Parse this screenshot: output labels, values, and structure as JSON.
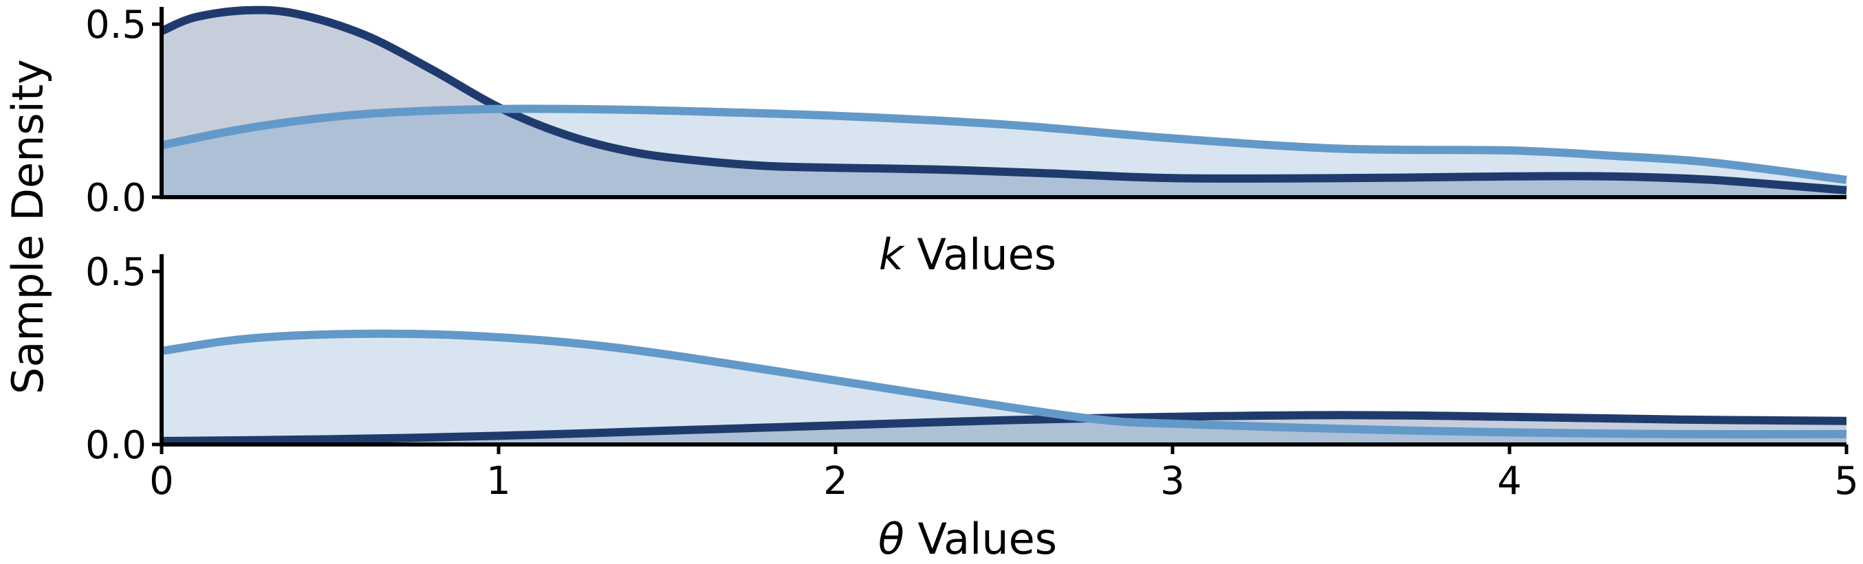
{
  "chart_data": {
    "type": "area",
    "ylabel": "Sample Density",
    "colors": {
      "dark": "#1f3b6e",
      "light": "#6399c8"
    },
    "panels": [
      {
        "xlabel_var": "k",
        "xlabel_rest": " Values",
        "xlim": [
          0,
          5
        ],
        "ylim": [
          0,
          0.55
        ],
        "yticks": [
          0.0,
          0.5
        ],
        "ytick_labels": [
          "0.0",
          "0.5"
        ],
        "xticks_shown": false,
        "series": [
          {
            "color_key": "dark",
            "x": [
              0,
              0.1,
              0.25,
              0.4,
              0.6,
              0.8,
              1.0,
              1.2,
              1.4,
              1.6,
              1.8,
              2.0,
              2.3,
              2.6,
              3.0,
              3.5,
              4.0,
              4.3,
              4.6,
              5.0
            ],
            "values": [
              0.48,
              0.52,
              0.54,
              0.53,
              0.47,
              0.37,
              0.26,
              0.18,
              0.13,
              0.105,
              0.09,
              0.085,
              0.08,
              0.07,
              0.055,
              0.055,
              0.06,
              0.06,
              0.05,
              0.02
            ]
          },
          {
            "color_key": "light",
            "x": [
              0,
              0.2,
              0.4,
              0.6,
              0.8,
              1.0,
              1.2,
              1.5,
              2.0,
              2.5,
              3.0,
              3.5,
              4.0,
              4.3,
              4.6,
              5.0
            ],
            "values": [
              0.15,
              0.19,
              0.22,
              0.24,
              0.25,
              0.255,
              0.255,
              0.25,
              0.235,
              0.21,
              0.17,
              0.14,
              0.135,
              0.12,
              0.1,
              0.05
            ]
          }
        ]
      },
      {
        "xlabel_var": "θ",
        "xlabel_rest": " Values",
        "xlim": [
          0,
          5
        ],
        "ylim": [
          0,
          0.55
        ],
        "yticks": [
          0.0,
          0.5
        ],
        "ytick_labels": [
          "0.0",
          "0.5"
        ],
        "xticks_shown": true,
        "xticks": [
          0,
          1,
          2,
          3,
          4,
          5
        ],
        "xtick_labels": [
          "0",
          "1",
          "2",
          "3",
          "4",
          "5"
        ],
        "series": [
          {
            "color_key": "dark",
            "x": [
              0,
              0.5,
              1.0,
              1.5,
              2.0,
              2.5,
              3.0,
              3.5,
              4.0,
              4.5,
              5.0
            ],
            "values": [
              0.01,
              0.015,
              0.025,
              0.04,
              0.055,
              0.07,
              0.08,
              0.085,
              0.08,
              0.072,
              0.068
            ]
          },
          {
            "color_key": "light",
            "x": [
              0,
              0.2,
              0.4,
              0.65,
              0.9,
              1.2,
              1.5,
              2.0,
              2.5,
              2.8,
              3.0,
              3.5,
              4.0,
              4.5,
              5.0
            ],
            "values": [
              0.27,
              0.3,
              0.315,
              0.32,
              0.315,
              0.295,
              0.26,
              0.185,
              0.11,
              0.07,
              0.06,
              0.045,
              0.035,
              0.03,
              0.03
            ]
          }
        ]
      }
    ]
  }
}
